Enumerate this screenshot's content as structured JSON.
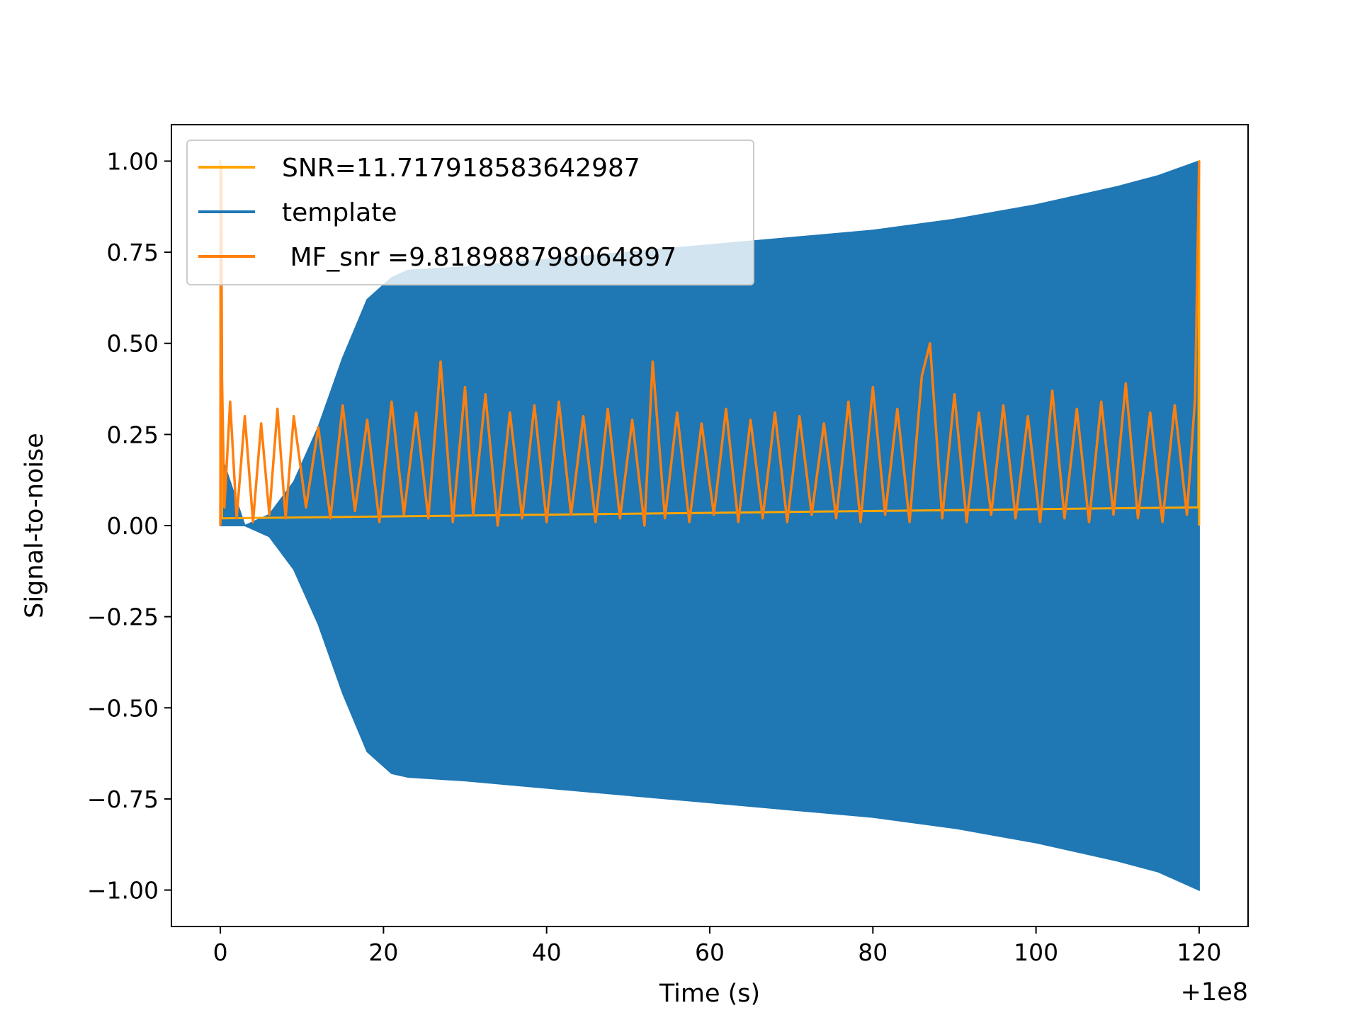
{
  "chart_data": {
    "type": "line",
    "xlabel": "Time (s)",
    "ylabel": "Signal-to-noise",
    "x_offset_label": "+1e8",
    "xlim": [
      -6,
      126
    ],
    "ylim": [
      -1.1,
      1.1
    ],
    "xticks": [
      0,
      20,
      40,
      60,
      80,
      100,
      120
    ],
    "xtick_labels": [
      "0",
      "20",
      "40",
      "60",
      "80",
      "100",
      "120"
    ],
    "yticks": [
      1.0,
      0.75,
      0.5,
      0.25,
      0.0,
      -0.25,
      -0.5,
      -0.75,
      -1.0
    ],
    "ytick_labels": [
      "1.00",
      "0.75",
      "0.50",
      "0.25",
      "0.00",
      "−0.25",
      "−0.50",
      "−0.75",
      "−1.00"
    ],
    "grid": false,
    "legend_position": "upper-left",
    "colors": {
      "snr": "#FFA500",
      "template": "#1F77B4",
      "mf_snr": "#FF7F0E"
    },
    "series": [
      {
        "name": "SNR=11.717918583642987",
        "kind": "spike",
        "color": "#FFA500",
        "x": [
          0,
          0,
          0.2,
          119.9,
          120.0,
          120.0
        ],
        "y": [
          0.0,
          1.0,
          0.02,
          0.05,
          1.0,
          0.0
        ]
      },
      {
        "name": "template",
        "kind": "envelope",
        "color": "#1F77B4",
        "x": [
          0,
          3,
          6,
          9,
          12,
          15,
          18,
          21,
          23,
          30,
          40,
          50,
          60,
          70,
          80,
          90,
          100,
          110,
          115,
          120
        ],
        "upper": [
          0.2,
          0.0,
          0.03,
          0.12,
          0.27,
          0.46,
          0.62,
          0.68,
          0.7,
          0.71,
          0.73,
          0.75,
          0.77,
          0.79,
          0.81,
          0.84,
          0.88,
          0.93,
          0.96,
          1.0
        ],
        "lower": [
          0.0,
          0.0,
          -0.03,
          -0.12,
          -0.27,
          -0.46,
          -0.62,
          -0.68,
          -0.69,
          -0.7,
          -0.72,
          -0.74,
          -0.76,
          -0.78,
          -0.8,
          -0.83,
          -0.87,
          -0.92,
          -0.95,
          -1.0
        ]
      },
      {
        "name": " MF_snr =9.818988798064897",
        "kind": "noise",
        "color": "#FF7F0E",
        "x": [
          0,
          0.1,
          0.2,
          0.5,
          1.2,
          2.0,
          3.0,
          4.0,
          5.0,
          6.0,
          7.0,
          8.0,
          9.0,
          10.5,
          12.0,
          13.5,
          15.0,
          16.5,
          18.0,
          19.5,
          21.0,
          22.5,
          24.0,
          25.5,
          27.0,
          28.5,
          30.0,
          31.0,
          32.5,
          34.0,
          35.5,
          37.0,
          38.5,
          40.0,
          41.5,
          43.0,
          44.5,
          46.0,
          47.5,
          49.0,
          50.5,
          52.0,
          53.0,
          54.5,
          56.0,
          57.5,
          59.0,
          60.5,
          62.0,
          63.5,
          65.0,
          66.5,
          68.0,
          69.5,
          71.0,
          72.5,
          74.0,
          75.5,
          77.0,
          78.5,
          80.0,
          81.5,
          83.0,
          84.5,
          86.0,
          87.0,
          88.5,
          90.0,
          91.5,
          93.0,
          94.5,
          96.0,
          97.5,
          99.0,
          100.5,
          102.0,
          103.5,
          105.0,
          106.5,
          108.0,
          109.5,
          111.0,
          112.5,
          114.0,
          115.5,
          117.0,
          118.5,
          119.5,
          120.0
        ],
        "y": [
          0.0,
          0.98,
          0.4,
          0.05,
          0.34,
          0.02,
          0.3,
          0.01,
          0.28,
          0.03,
          0.32,
          0.02,
          0.3,
          0.05,
          0.27,
          0.02,
          0.33,
          0.04,
          0.29,
          0.01,
          0.34,
          0.03,
          0.31,
          0.02,
          0.45,
          0.01,
          0.38,
          0.03,
          0.36,
          0.0,
          0.31,
          0.02,
          0.33,
          0.01,
          0.34,
          0.03,
          0.3,
          0.01,
          0.32,
          0.02,
          0.29,
          0.0,
          0.45,
          0.02,
          0.31,
          0.01,
          0.28,
          0.03,
          0.32,
          0.01,
          0.29,
          0.02,
          0.31,
          0.01,
          0.3,
          0.03,
          0.28,
          0.02,
          0.34,
          0.01,
          0.38,
          0.03,
          0.32,
          0.01,
          0.41,
          0.5,
          0.02,
          0.36,
          0.01,
          0.31,
          0.03,
          0.33,
          0.02,
          0.3,
          0.01,
          0.37,
          0.02,
          0.32,
          0.01,
          0.34,
          0.03,
          0.39,
          0.02,
          0.31,
          0.01,
          0.33,
          0.03,
          0.35,
          1.0
        ]
      }
    ]
  },
  "legend": [
    {
      "label": "SNR=11.717918583642987",
      "color": "#FFA500"
    },
    {
      "label": "template",
      "color": "#1F77B4"
    },
    {
      "label": " MF_snr =9.818988798064897",
      "color": "#FF7F0E"
    }
  ]
}
